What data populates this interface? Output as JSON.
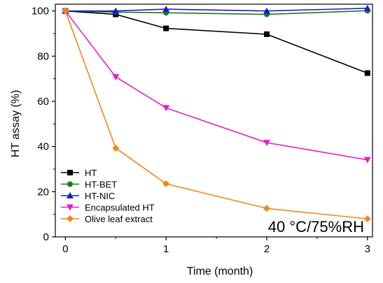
{
  "chart_data": {
    "type": "line",
    "xlabel": "Time (month)",
    "ylabel": "HT assay (%)",
    "xlim": [
      -0.1,
      3.05
    ],
    "ylim": [
      0,
      103
    ],
    "xticks": [
      0,
      1,
      2,
      3
    ],
    "yticks": [
      0,
      20,
      40,
      60,
      80,
      100
    ],
    "xtick_labels": [
      "0",
      "1",
      "2",
      "3"
    ],
    "ytick_labels": [
      "0",
      "20",
      "40",
      "60",
      "80",
      "100"
    ],
    "grid": false,
    "legend_position": "bottom-left",
    "annotation": "40 °C/75%RH",
    "series": [
      {
        "name": "HT",
        "color": "#000000",
        "marker": "square",
        "x": [
          0,
          0.5,
          1,
          2,
          3
        ],
        "y": [
          100,
          98.5,
          92.3,
          89.7,
          72.5
        ]
      },
      {
        "name": "HT-BET",
        "color": "#1a7a1a",
        "marker": "circle",
        "x": [
          0,
          0.5,
          1,
          2,
          3
        ],
        "y": [
          100,
          99.5,
          99.2,
          98.5,
          100.1
        ]
      },
      {
        "name": "HT-NIC",
        "color": "#1c1cc8",
        "marker": "triangle-up",
        "x": [
          0,
          0.5,
          1,
          2,
          3
        ],
        "y": [
          100,
          100,
          100.8,
          100,
          101.2
        ]
      },
      {
        "name": "Encapsulated HT",
        "color": "#e020c8",
        "marker": "triangle-down",
        "x": [
          0,
          0.5,
          1,
          2,
          3
        ],
        "y": [
          100,
          70.8,
          57.1,
          41.7,
          34.1
        ]
      },
      {
        "name": "Olive leaf extract",
        "color": "#f0861c",
        "marker": "diamond",
        "x": [
          0,
          0.5,
          1,
          2,
          3
        ],
        "y": [
          100,
          39.3,
          23.5,
          12.6,
          8.0
        ]
      }
    ]
  }
}
